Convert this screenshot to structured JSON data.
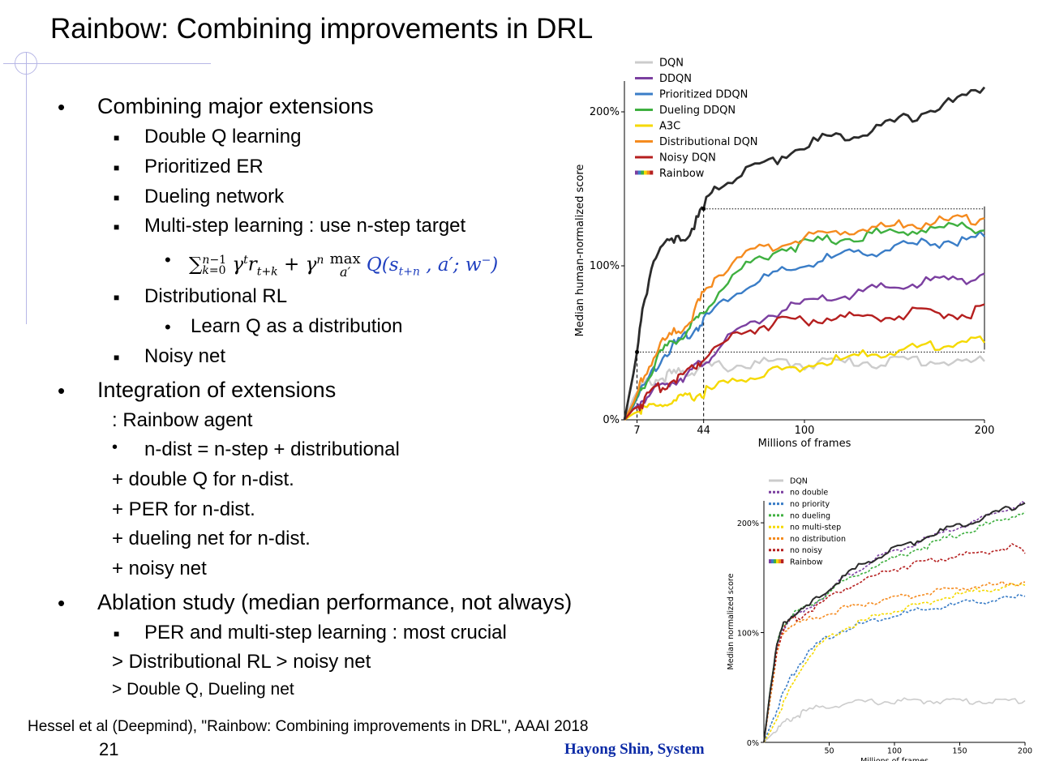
{
  "slide": {
    "title": "Rainbow: Combining improvements in DRL",
    "page_number": "21",
    "citation": "Hessel et al (Deepmind), \"Rainbow: Combining improvements in DRL\", AAAI 2018",
    "author": "Hayong Shin, System"
  },
  "bullets": {
    "combining": "Combining major extensions",
    "double_q": "Double Q learning",
    "prioritized": "Prioritized ER",
    "dueling": "Dueling network",
    "multistep": "Multi-step learning : use n-step target",
    "distributional": "Distributional RL",
    "learn_q": "Learn Q as a distribution",
    "noisy": "Noisy net",
    "integration": "Integration of extensions",
    "rainbow_agent": ": Rainbow agent",
    "ndist": "n-dist = n-step + distributional",
    "plus_double": "+ double Q for n-dist.",
    "plus_per": "+ PER for n-dist.",
    "plus_dueling": "+ dueling net for n-dist.",
    "plus_noisy": "+ noisy net",
    "ablation": "Ablation study (median performance, not always)",
    "per_multistep": "PER and multi-step learning : most crucial",
    "distributional_gt": "> Distributional RL > noisy net",
    "double_dueling": "> Double Q, Dueling net"
  },
  "chart_data": [
    {
      "type": "line",
      "title": "",
      "xlabel": "Millions of frames",
      "ylabel": "Median human-normalized score",
      "xlim": [
        0,
        200
      ],
      "ylim": [
        0,
        220
      ],
      "x_ticks": [
        "7",
        "44",
        "100",
        "200"
      ],
      "y_ticks": [
        "0%",
        "100%",
        "200%"
      ],
      "reference_lines": {
        "rainbow_at_7": 44,
        "rainbow_at_44": 137,
        "x_markers": [
          7,
          44
        ]
      },
      "x": [
        0,
        5,
        7,
        10,
        15,
        20,
        25,
        30,
        35,
        40,
        44,
        50,
        60,
        70,
        80,
        90,
        100,
        110,
        120,
        130,
        140,
        150,
        160,
        170,
        180,
        190,
        200
      ],
      "series": [
        {
          "name": "DQN",
          "color": "#cccccc",
          "values": [
            0,
            14,
            18,
            22,
            25,
            27,
            29,
            30,
            31,
            33,
            34,
            35,
            35,
            36,
            37,
            37,
            36,
            38,
            37,
            38,
            37,
            38,
            39,
            38,
            38,
            37,
            38
          ]
        },
        {
          "name": "DDQN",
          "color": "#7b3fa0",
          "values": [
            0,
            7,
            9,
            13,
            18,
            21,
            24,
            27,
            30,
            34,
            38,
            44,
            54,
            62,
            68,
            72,
            75,
            78,
            80,
            82,
            85,
            86,
            88,
            90,
            91,
            92,
            95
          ]
        },
        {
          "name": "Prioritized DDQN",
          "color": "#3a7dc7",
          "values": [
            0,
            9,
            14,
            20,
            30,
            40,
            46,
            50,
            55,
            60,
            65,
            72,
            82,
            88,
            93,
            96,
            100,
            104,
            106,
            108,
            110,
            112,
            113,
            115,
            116,
            117,
            119
          ]
        },
        {
          "name": "Dueling DDQN",
          "color": "#3fb040",
          "values": [
            0,
            10,
            15,
            22,
            32,
            42,
            48,
            53,
            58,
            64,
            70,
            80,
            93,
            102,
            108,
            112,
            114,
            116,
            118,
            119,
            121,
            122,
            123,
            124,
            125,
            126,
            123
          ]
        },
        {
          "name": "A3C",
          "color": "#f5d900",
          "values": [
            0,
            4,
            5,
            6,
            8,
            10,
            11,
            12,
            14,
            16,
            18,
            20,
            25,
            28,
            31,
            33,
            35,
            37,
            39,
            41,
            43,
            45,
            46,
            48,
            50,
            52,
            50
          ]
        },
        {
          "name": "Distributional DQN",
          "color": "#f58b1f",
          "values": [
            0,
            11,
            17,
            26,
            38,
            48,
            54,
            58,
            63,
            72,
            82,
            92,
            102,
            108,
            112,
            115,
            118,
            120,
            122,
            124,
            125,
            126,
            127,
            128,
            129,
            130,
            131
          ]
        },
        {
          "name": "Noisy DQN",
          "color": "#b51f1f",
          "values": [
            0,
            7,
            8,
            11,
            17,
            21,
            25,
            28,
            31,
            36,
            41,
            46,
            54,
            59,
            62,
            65,
            64,
            66,
            66,
            67,
            68,
            67,
            69,
            68,
            70,
            68,
            75
          ]
        },
        {
          "name": "Rainbow",
          "color": "#2b2b2b",
          "values": [
            0,
            30,
            44,
            70,
            100,
            112,
            114,
            116,
            120,
            130,
            137,
            152,
            156,
            162,
            167,
            173,
            178,
            182,
            184,
            187,
            190,
            193,
            197,
            201,
            205,
            210,
            216
          ]
        }
      ]
    },
    {
      "type": "line",
      "title": "",
      "xlabel": "Millions of frames",
      "ylabel": "Median normalized score",
      "xlim": [
        0,
        200
      ],
      "ylim": [
        0,
        220
      ],
      "x_ticks": [
        "50",
        "100",
        "150",
        "200"
      ],
      "y_ticks": [
        "0%",
        "100%",
        "200%"
      ],
      "x": [
        0,
        5,
        10,
        15,
        20,
        25,
        30,
        40,
        50,
        60,
        70,
        80,
        90,
        100,
        110,
        120,
        130,
        140,
        150,
        160,
        170,
        180,
        190,
        200
      ],
      "series": [
        {
          "name": "DQN",
          "color": "#cccccc",
          "dashed": false,
          "values": [
            0,
            6,
            12,
            17,
            21,
            24,
            27,
            31,
            33,
            35,
            36,
            37,
            37,
            37,
            38,
            37,
            38,
            38,
            38,
            37,
            38,
            37,
            38,
            38
          ]
        },
        {
          "name": "no double",
          "color": "#7b3fa0",
          "dashed": true,
          "values": [
            0,
            45,
            85,
            105,
            112,
            116,
            120,
            128,
            138,
            148,
            156,
            163,
            169,
            174,
            178,
            183,
            187,
            192,
            196,
            200,
            205,
            210,
            214,
            218
          ]
        },
        {
          "name": "no priority",
          "color": "#3a7dc7",
          "dashed": true,
          "values": [
            0,
            15,
            30,
            45,
            58,
            68,
            76,
            88,
            96,
            102,
            106,
            110,
            113,
            116,
            118,
            120,
            122,
            124,
            126,
            128,
            129,
            130,
            131,
            133
          ]
        },
        {
          "name": "no dueling",
          "color": "#3fb040",
          "dashed": true,
          "values": [
            0,
            50,
            90,
            108,
            114,
            118,
            121,
            129,
            137,
            145,
            152,
            158,
            163,
            168,
            173,
            177,
            181,
            186,
            190,
            194,
            198,
            202,
            206,
            210
          ]
        },
        {
          "name": "no multi-step",
          "color": "#f5d900",
          "dashed": true,
          "values": [
            0,
            10,
            22,
            35,
            48,
            60,
            70,
            84,
            95,
            102,
            108,
            112,
            116,
            120,
            123,
            126,
            129,
            132,
            135,
            137,
            139,
            141,
            142,
            143
          ]
        },
        {
          "name": "no distribution",
          "color": "#f58b1f",
          "dashed": true,
          "values": [
            0,
            40,
            80,
            100,
            106,
            108,
            110,
            114,
            118,
            121,
            124,
            127,
            129,
            131,
            133,
            135,
            137,
            139,
            140,
            142,
            143,
            144,
            145,
            146
          ]
        },
        {
          "name": "no noisy",
          "color": "#b51f1f",
          "dashed": true,
          "values": [
            0,
            45,
            85,
            104,
            110,
            113,
            116,
            124,
            132,
            139,
            145,
            150,
            154,
            158,
            161,
            164,
            166,
            168,
            170,
            172,
            174,
            176,
            178,
            172
          ]
        },
        {
          "name": "Rainbow",
          "color": "#2b2b2b",
          "dashed": false,
          "values": [
            0,
            48,
            88,
            108,
            114,
            117,
            120,
            130,
            140,
            150,
            158,
            165,
            170,
            176,
            180,
            185,
            190,
            194,
            198,
            202,
            206,
            210,
            214,
            218
          ]
        }
      ]
    }
  ]
}
